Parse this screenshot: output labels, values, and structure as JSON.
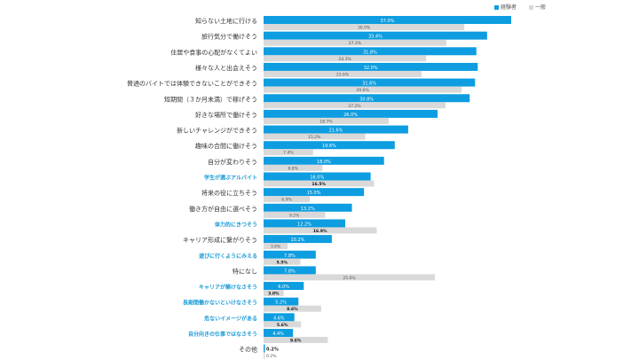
{
  "chart_data": {
    "type": "bar",
    "orientation": "horizontal",
    "title": "",
    "xlabel": "",
    "ylabel": "",
    "xlim": [
      0,
      40
    ],
    "grid": false,
    "legend_position": "top-right",
    "colors": {
      "経験者": "#0d9de0",
      "一般": "#d9d9d9",
      "highlight_label": "#1a9bd7"
    },
    "categories": [
      "知らない土地に行ける",
      "旅行気分で働けそう",
      "住居や食事の心配がなくてよい",
      "様々な人と出会えそう",
      "普通のバイトでは体験できないことができそう",
      "短期間（３か月未満）で稼げそう",
      "好きな場所で働けそう",
      "新しいチャレンジができそう",
      "趣味の合間に働けそう",
      "自分が変わりそう",
      "学生が選ぶアルバイト",
      "将来の役に立ちそう",
      "働き方が自由に選べそう",
      "体力的にきつそう",
      "キャリア形成に繋がりそう",
      "遊びに行くようにみえる",
      "特になし",
      "キャリアが築けなさそう",
      "長期間働かないといけなさそう",
      "危ないイメージがある",
      "自分向きの仕事ではなさそう",
      "その他"
    ],
    "highlighted": [
      10,
      13,
      15,
      17,
      18,
      19,
      20
    ],
    "series": [
      {
        "name": "経験者",
        "values": [
          37.0,
          33.4,
          31.8,
          32.0,
          31.6,
          30.8,
          26.0,
          21.6,
          19.6,
          18.0,
          16.0,
          15.0,
          13.2,
          12.2,
          10.2,
          7.8,
          7.8,
          6.0,
          5.2,
          4.6,
          4.4,
          0.2
        ]
      },
      {
        "name": "一般",
        "values": [
          30.0,
          27.3,
          24.3,
          23.6,
          29.6,
          27.2,
          18.7,
          15.2,
          7.4,
          8.8,
          16.5,
          6.9,
          9.2,
          16.9,
          3.6,
          5.5,
          25.6,
          3.0,
          8.6,
          5.6,
          9.6,
          0.2
        ]
      }
    ]
  }
}
